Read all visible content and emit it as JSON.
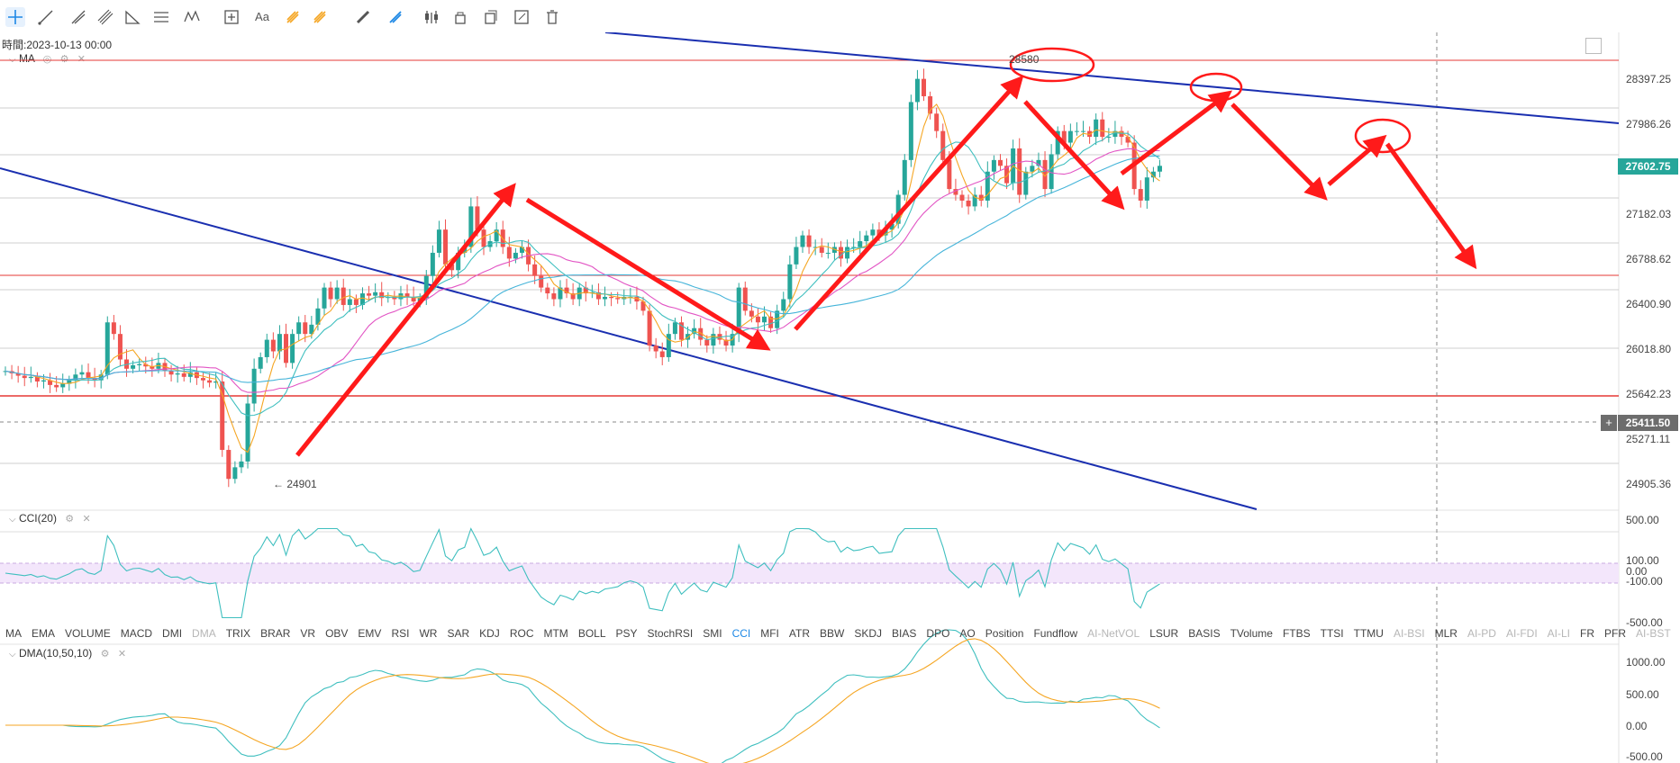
{
  "toolbar": {
    "tools": [
      {
        "name": "crosshair-icon",
        "active": true
      },
      {
        "name": "trend-line-icon"
      },
      {
        "name": "ray-line-icon"
      },
      {
        "name": "parallel-channel-icon"
      },
      {
        "name": "triangle-icon"
      },
      {
        "name": "fib-retracement-icon"
      },
      {
        "name": "wave-icon"
      },
      {
        "name": "measure-icon"
      },
      {
        "name": "text-icon",
        "label": "Aa"
      },
      {
        "name": "brush-icon"
      },
      {
        "name": "eraser-icon"
      },
      {
        "name": "ruler-icon"
      },
      {
        "name": "pencil-icon"
      },
      {
        "name": "candles-icon"
      },
      {
        "name": "lock-icon"
      },
      {
        "name": "copy-icon"
      },
      {
        "name": "edit-icon"
      },
      {
        "name": "trash-icon"
      }
    ]
  },
  "header": {
    "time_label": "時間:2023-10-13 00:00",
    "ma_label": "MA",
    "cci_label": "CCI(20)",
    "dma_label": "DMA(10,50,10)"
  },
  "main_chart": {
    "y_axis_ticks": [
      "28397.25",
      "27986.26",
      "27602.75",
      "27182.03",
      "26788.62",
      "26400.90",
      "26018.80",
      "25642.23",
      "25411.50",
      "25271.11",
      "24905.36"
    ],
    "current_price": "27602.75",
    "crosshair_price": "25411.50",
    "high_annotation": "28580",
    "low_annotation": "← 24901",
    "horizontal_levels_color": "#e53935",
    "trendline_color": "#1a2fb0",
    "arrow_color": "#ff1a1a"
  },
  "cci_axis": [
    "500.00",
    "100.00",
    "0.00",
    "-100.00",
    "-500.00"
  ],
  "dma_axis": [
    "1000.00",
    "500.00",
    "0.00",
    "-500.00"
  ],
  "indicator_tabs": [
    {
      "label": "MA"
    },
    {
      "label": "EMA"
    },
    {
      "label": "VOLUME"
    },
    {
      "label": "MACD"
    },
    {
      "label": "DMI"
    },
    {
      "label": "DMA",
      "dim": true
    },
    {
      "label": "TRIX"
    },
    {
      "label": "BRAR"
    },
    {
      "label": "VR"
    },
    {
      "label": "OBV"
    },
    {
      "label": "EMV"
    },
    {
      "label": "RSI"
    },
    {
      "label": "WR"
    },
    {
      "label": "SAR"
    },
    {
      "label": "KDJ"
    },
    {
      "label": "ROC"
    },
    {
      "label": "MTM"
    },
    {
      "label": "BOLL"
    },
    {
      "label": "PSY"
    },
    {
      "label": "StochRSI"
    },
    {
      "label": "SMI"
    },
    {
      "label": "CCI",
      "active": true
    },
    {
      "label": "MFI"
    },
    {
      "label": "ATR"
    },
    {
      "label": "BBW"
    },
    {
      "label": "SKDJ"
    },
    {
      "label": "BIAS"
    },
    {
      "label": "DPO"
    },
    {
      "label": "AO"
    },
    {
      "label": "Position"
    },
    {
      "label": "Fundflow"
    },
    {
      "label": "AI-NetVOL",
      "dim": true
    },
    {
      "label": "LSUR"
    },
    {
      "label": "BASIS"
    },
    {
      "label": "TVolume"
    },
    {
      "label": "FTBS"
    },
    {
      "label": "TTSI"
    },
    {
      "label": "TTMU"
    },
    {
      "label": "AI-BSI",
      "dim": true
    },
    {
      "label": "MLR"
    },
    {
      "label": "AI-PD",
      "dim": true
    },
    {
      "label": "AI-FDI",
      "dim": true
    },
    {
      "label": "AI-LI",
      "dim": true
    },
    {
      "label": "FR"
    },
    {
      "label": "PFR"
    },
    {
      "label": "AI-BST",
      "dim": true
    }
  ],
  "chart_data": {
    "type": "candlestick",
    "y_price_range": [
      24700,
      28750
    ],
    "colors": {
      "up": "#26a69a",
      "down": "#ef5350",
      "ma5": "#f5a623",
      "ma10": "#3fbfbf",
      "ma20": "#e255c4",
      "ma60": "#45b4d9"
    },
    "close_series": [
      25880,
      25860,
      25840,
      25820,
      25830,
      25790,
      25800,
      25760,
      25740,
      25770,
      25800,
      25850,
      25870,
      25820,
      25800,
      25850,
      26300,
      26200,
      25980,
      25900,
      25930,
      25940,
      25920,
      25900,
      25950,
      25880,
      25850,
      25860,
      25830,
      25870,
      25820,
      25800,
      25780,
      25790,
      25200,
      24950,
      25050,
      25100,
      25600,
      25900,
      26000,
      26150,
      26050,
      26200,
      25950,
      26200,
      26300,
      26200,
      26280,
      26420,
      26600,
      26500,
      26600,
      26450,
      26500,
      26450,
      26550,
      26530,
      26560,
      26510,
      26520,
      26500,
      26550,
      26520,
      26480,
      26510,
      26700,
      26900,
      27100,
      26800,
      26750,
      26900,
      26950,
      27300,
      27100,
      26950,
      27000,
      27100,
      26950,
      26850,
      26900,
      26950,
      26800,
      26700,
      26600,
      26550,
      26500,
      26600,
      26550,
      26500,
      26600,
      26550,
      26560,
      26500,
      26520,
      26510,
      26500,
      26520,
      26520,
      26480,
      26400,
      26100,
      26050,
      26000,
      26200,
      26300,
      26150,
      26200,
      26250,
      26150,
      26100,
      26200,
      26150,
      26100,
      26200,
      26600,
      26400,
      26350,
      26300,
      26350,
      26250,
      26400,
      26500,
      26800,
      26950,
      27050,
      26950,
      26950,
      26900,
      26900,
      26950,
      26850,
      26950,
      26950,
      27000,
      27050,
      27100,
      27050,
      27100,
      27150,
      27400,
      27700,
      28200,
      28400,
      28250,
      28100,
      27950,
      27700,
      27450,
      27400,
      27350,
      27300,
      27400,
      27350,
      27600,
      27700,
      27650,
      27500,
      27800,
      27400,
      27600,
      27650,
      27700,
      27450,
      27750,
      27950,
      27850,
      27950,
      27950,
      27950,
      27900,
      28050,
      27900,
      27900,
      27950,
      27900,
      27850,
      27450,
      27350,
      27550,
      27600,
      27650
    ]
  }
}
